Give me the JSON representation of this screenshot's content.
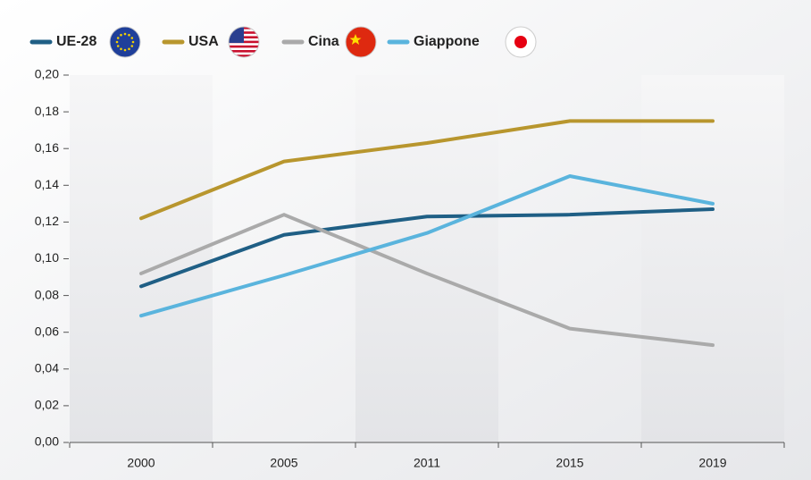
{
  "chart_data": {
    "type": "line",
    "categories": [
      "2000",
      "2005",
      "2011",
      "2015",
      "2019"
    ],
    "series": [
      {
        "name": "UE-28",
        "color": "#1f5f85",
        "values": [
          0.085,
          0.113,
          0.123,
          0.124,
          0.127
        ]
      },
      {
        "name": "USA",
        "color": "#b8962e",
        "values": [
          0.122,
          0.153,
          0.163,
          0.175,
          0.175
        ]
      },
      {
        "name": "Cina",
        "color": "#aaaaaa",
        "values": [
          0.092,
          0.124,
          0.092,
          0.062,
          0.053
        ]
      },
      {
        "name": "Giappone",
        "color": "#5ab4dd",
        "values": [
          0.069,
          0.091,
          0.114,
          0.145,
          0.13
        ]
      }
    ],
    "ylim": [
      0,
      0.2
    ],
    "yticks": [
      {
        "value": 0,
        "label": "0,00"
      },
      {
        "value": 0.02,
        "label": "0,02"
      },
      {
        "value": 0.04,
        "label": "0,04"
      },
      {
        "value": 0.06,
        "label": "0,06"
      },
      {
        "value": 0.08,
        "label": "0,08"
      },
      {
        "value": 0.1,
        "label": "0,10"
      },
      {
        "value": 0.12,
        "label": "0,12"
      },
      {
        "value": 0.14,
        "label": "0,14"
      },
      {
        "value": 0.16,
        "label": "0,16"
      },
      {
        "value": 0.18,
        "label": "0,18"
      },
      {
        "value": 0.2,
        "label": "0,20"
      }
    ],
    "legend": "top-left"
  }
}
